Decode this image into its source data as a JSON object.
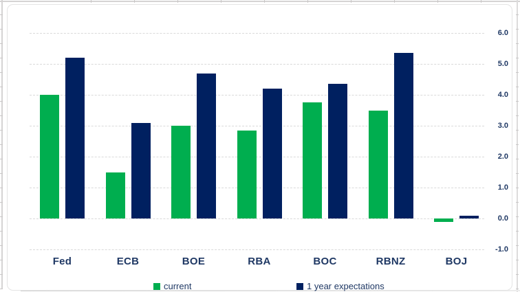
{
  "chart_data": {
    "type": "bar",
    "title": "",
    "xlabel": "",
    "ylabel": "",
    "categories": [
      "Fed",
      "ECB",
      "BOE",
      "RBA",
      "BOC",
      "RBNZ",
      "BOJ"
    ],
    "series": [
      {
        "name": "current",
        "color": "#00ae4f",
        "values": [
          4.0,
          1.5,
          3.0,
          2.85,
          3.75,
          3.5,
          -0.1
        ]
      },
      {
        "name": "1 year expectations",
        "color": "#002060",
        "values": [
          5.2,
          3.1,
          4.7,
          4.2,
          4.35,
          5.35,
          0.1
        ]
      }
    ],
    "ylim": [
      -1.0,
      6.0
    ],
    "yticks": [
      6.0,
      5.0,
      4.0,
      3.0,
      2.0,
      1.0,
      0.0,
      -1.0
    ],
    "ytick_labels": [
      "6.0",
      "5.0",
      "4.0",
      "3.0",
      "2.0",
      "1.0",
      "0.0",
      "-1.0"
    ],
    "y_axis_side": "right",
    "grid": "horizontal-dashed",
    "legend_position": "bottom",
    "colors": {
      "current_green": "#00ae4f",
      "expectations_navy": "#002060",
      "axis_text": "#1f3864",
      "gridline": "#d9d9d9",
      "sheet_line": "#d5d3d3",
      "chart_border": "#e4e4e4",
      "background": "#ffffff"
    }
  }
}
